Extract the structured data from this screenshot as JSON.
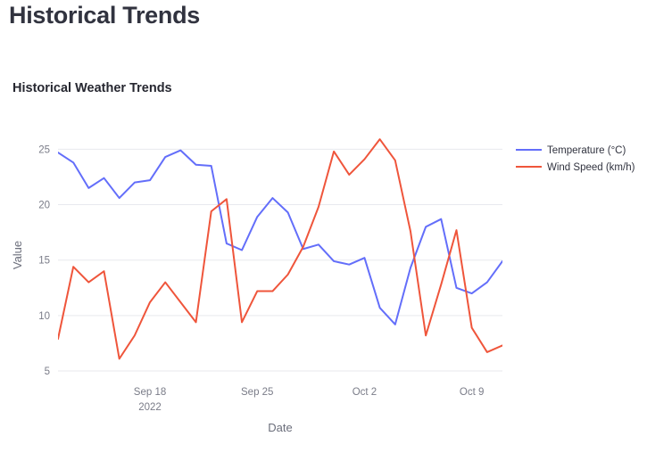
{
  "page": {
    "title": "Historical Trends"
  },
  "chart_data": {
    "type": "line",
    "title": "Historical Weather Trends",
    "xlabel": "Date",
    "ylabel": "Value",
    "x_start": "2022-09-12",
    "x": [
      "2022-09-12",
      "2022-09-13",
      "2022-09-14",
      "2022-09-15",
      "2022-09-16",
      "2022-09-17",
      "2022-09-18",
      "2022-09-19",
      "2022-09-20",
      "2022-09-21",
      "2022-09-22",
      "2022-09-23",
      "2022-09-24",
      "2022-09-25",
      "2022-09-26",
      "2022-09-27",
      "2022-09-28",
      "2022-09-29",
      "2022-09-30",
      "2022-10-01",
      "2022-10-02",
      "2022-10-03",
      "2022-10-04",
      "2022-10-05",
      "2022-10-06",
      "2022-10-07",
      "2022-10-08",
      "2022-10-09",
      "2022-10-10",
      "2022-10-11"
    ],
    "series": [
      {
        "name": "Temperature (°C)",
        "color": "#636efa",
        "values": [
          24.7,
          23.8,
          21.5,
          22.4,
          20.6,
          22.0,
          22.2,
          24.3,
          24.9,
          23.6,
          23.5,
          16.5,
          15.9,
          18.9,
          20.6,
          19.3,
          16.0,
          16.4,
          14.9,
          14.6,
          15.2,
          10.7,
          9.2,
          14.3,
          18.0,
          18.7,
          12.5,
          12.0,
          13.0,
          14.9
        ]
      },
      {
        "name": "Wind Speed (km/h)",
        "color": "#ef553b",
        "values": [
          7.9,
          14.4,
          13.0,
          14.0,
          6.1,
          8.2,
          11.2,
          13.0,
          11.2,
          9.4,
          19.4,
          20.5,
          9.4,
          12.2,
          12.2,
          13.7,
          16.2,
          19.8,
          24.8,
          22.7,
          24.1,
          25.9,
          24.0,
          17.6,
          8.2,
          12.8,
          17.7,
          8.9,
          6.7,
          7.3
        ]
      }
    ],
    "x_ticks": [
      {
        "date": "2022-09-18",
        "label": "Sep 18",
        "sublabel": "2022"
      },
      {
        "date": "2022-09-25",
        "label": "Sep 25",
        "sublabel": ""
      },
      {
        "date": "2022-10-02",
        "label": "Oct 2",
        "sublabel": ""
      },
      {
        "date": "2022-10-09",
        "label": "Oct 9",
        "sublabel": ""
      }
    ],
    "y_ticks": [
      5,
      10,
      15,
      20,
      25
    ],
    "ylim": [
      4.2,
      27.2
    ],
    "grid": true,
    "legend_position": "top-right"
  }
}
